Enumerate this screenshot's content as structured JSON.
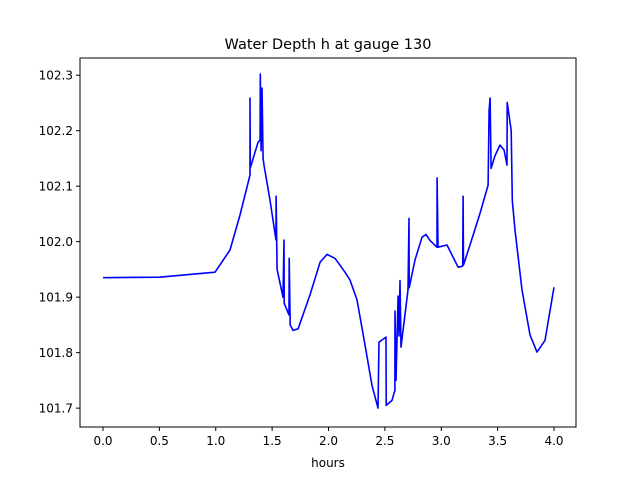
{
  "chart_data": {
    "type": "line",
    "title": "Water Depth h at gauge 130",
    "xlabel": "hours",
    "ylabel": "",
    "xlim": [
      -0.204,
      4.195
    ],
    "ylim": [
      101.666,
      102.331
    ],
    "xticks": [
      0.0,
      0.5,
      1.0,
      1.5,
      2.0,
      2.5,
      3.0,
      3.5,
      4.0
    ],
    "xtick_labels": [
      "0.0",
      "0.5",
      "1.0",
      "1.5",
      "2.0",
      "2.5",
      "3.0",
      "3.5",
      "4.0"
    ],
    "yticks": [
      101.7,
      101.8,
      101.9,
      102.0,
      102.1,
      102.2,
      102.3
    ],
    "ytick_labels": [
      "101.7",
      "101.8",
      "101.9",
      "102.0",
      "102.1",
      "102.2",
      "102.3"
    ],
    "grid": false,
    "series": [
      {
        "name": "h",
        "color": "#0000ff",
        "x": [
          0.0,
          0.5,
          0.993,
          1.126,
          1.215,
          1.304,
          1.304,
          1.306,
          1.348,
          1.375,
          1.393,
          1.395,
          1.402,
          1.41,
          1.42,
          1.428,
          1.481,
          1.534,
          1.535,
          1.544,
          1.596,
          1.605,
          1.607,
          1.65,
          1.651,
          1.66,
          1.685,
          1.73,
          1.836,
          1.925,
          1.987,
          2.058,
          2.146,
          2.191,
          2.253,
          2.324,
          2.386,
          2.439,
          2.448,
          2.51,
          2.512,
          2.563,
          2.589,
          2.59,
          2.599,
          2.617,
          2.625,
          2.634,
          2.643,
          2.705,
          2.714,
          2.716,
          2.767,
          2.829,
          2.865,
          2.901,
          2.962,
          2.963,
          2.971,
          3.051,
          3.095,
          3.149,
          3.19,
          3.194,
          3.197,
          3.255,
          3.344,
          3.415,
          3.424,
          3.433,
          3.442,
          3.477,
          3.521,
          3.557,
          3.583,
          3.585,
          3.62,
          3.63,
          3.654,
          3.716,
          3.787,
          3.849,
          3.92,
          4.0
        ],
        "y": [
          101.935,
          101.936,
          101.945,
          101.985,
          102.048,
          102.12,
          102.259,
          102.133,
          102.161,
          102.179,
          102.183,
          102.302,
          102.164,
          102.277,
          102.15,
          102.138,
          102.075,
          102.003,
          102.082,
          101.95,
          101.9,
          102.003,
          101.889,
          101.868,
          101.97,
          101.85,
          101.84,
          101.843,
          101.904,
          101.963,
          101.977,
          101.97,
          101.945,
          101.931,
          101.895,
          101.814,
          101.741,
          101.7,
          101.819,
          101.828,
          101.705,
          101.714,
          101.732,
          101.875,
          101.75,
          101.902,
          101.83,
          101.93,
          101.81,
          101.913,
          102.042,
          101.917,
          101.967,
          102.008,
          102.013,
          102.002,
          101.99,
          102.115,
          101.99,
          101.994,
          101.976,
          101.954,
          101.956,
          102.082,
          101.958,
          101.994,
          102.051,
          102.102,
          102.237,
          102.259,
          102.132,
          102.155,
          102.174,
          102.165,
          102.138,
          102.251,
          102.2,
          102.074,
          102.021,
          101.913,
          101.832,
          101.801,
          101.822,
          101.918
        ]
      }
    ]
  }
}
